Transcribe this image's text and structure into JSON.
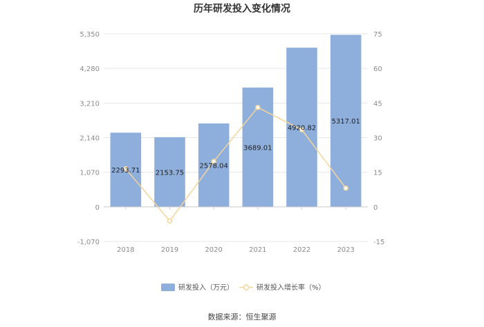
{
  "chart_data": {
    "type": "bar",
    "title": "历年研发投入变化情况",
    "categories": [
      "2018",
      "2019",
      "2020",
      "2021",
      "2022",
      "2023"
    ],
    "series": [
      {
        "name": "研发投入（万元）",
        "type": "bar",
        "axis": "left",
        "values": [
          2293.71,
          2153.75,
          2578.04,
          3689.01,
          4920.82,
          5317.01
        ],
        "labels": [
          "2293.71",
          "2153.75",
          "2578.04",
          "3689.01",
          "4920.82",
          "5317.01"
        ],
        "color": "#8eaedc"
      },
      {
        "name": "研发投入增长率（%）",
        "type": "line",
        "axis": "right",
        "values": [
          16.5,
          -6.1,
          19.7,
          43.1,
          33.4,
          8.1
        ],
        "color": "#f5d59a"
      }
    ],
    "y_left": {
      "min": -1070,
      "max": 5350,
      "ticks": [
        "5,350",
        "4,280",
        "3,210",
        "2,140",
        "1,070",
        "0",
        "-1,070"
      ]
    },
    "y_right": {
      "min": -15,
      "max": 75,
      "ticks": [
        "75",
        "60",
        "45",
        "30",
        "15",
        "0",
        "-15"
      ]
    },
    "grid": true,
    "legend_position": "bottom"
  },
  "source": "数据来源：恒生聚源"
}
